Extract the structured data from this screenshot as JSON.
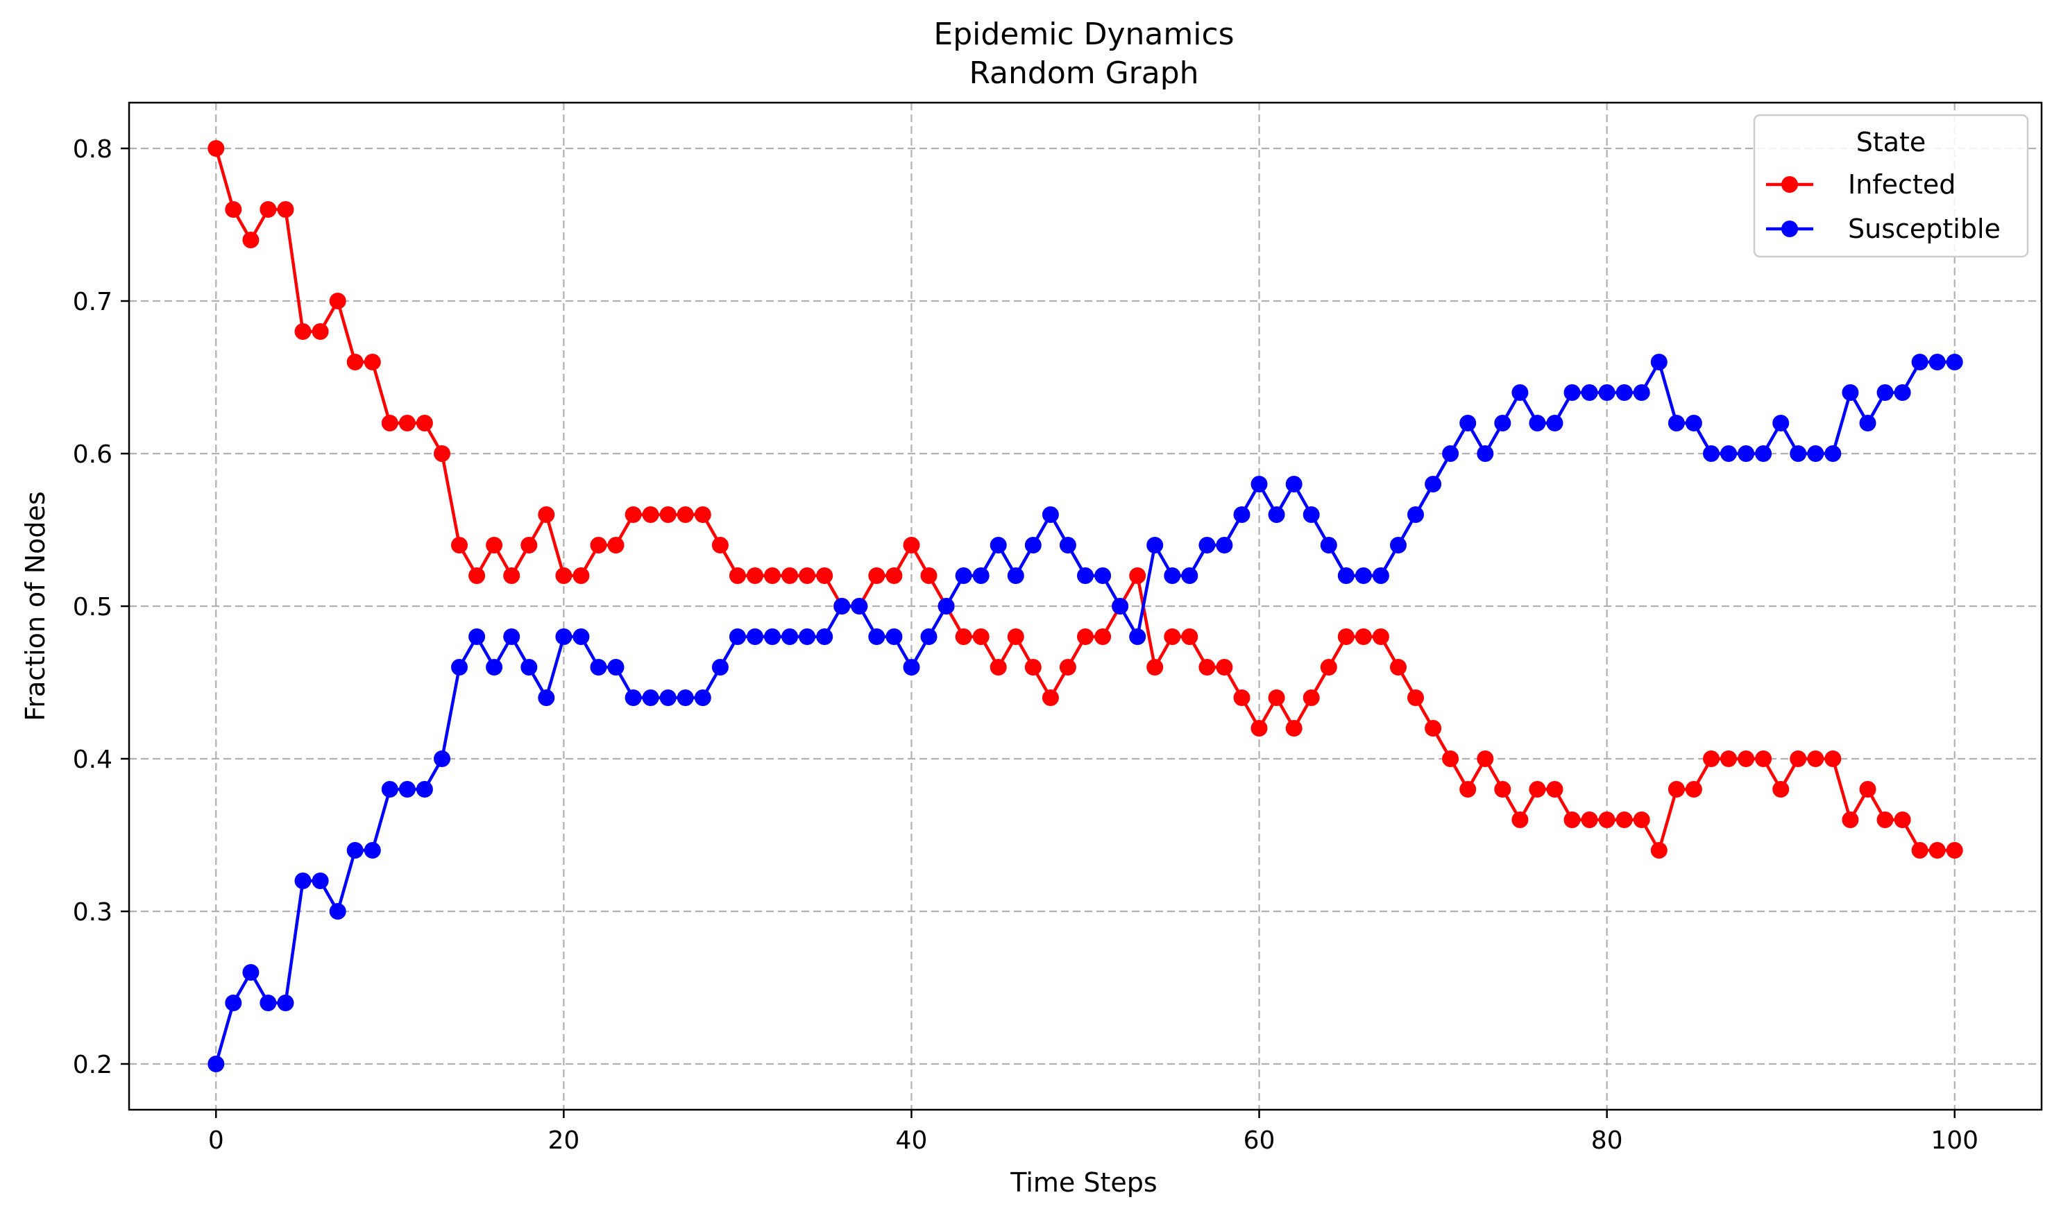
{
  "chart_data": {
    "type": "line",
    "title": "Epidemic Dynamics",
    "subtitle": "Random Graph",
    "xlabel": "Time Steps",
    "ylabel": "Fraction of Nodes",
    "xlim": [
      -5,
      105
    ],
    "ylim": [
      0.17,
      0.83
    ],
    "xticks": [
      0,
      20,
      40,
      60,
      80,
      100
    ],
    "yticks": [
      0.2,
      0.3,
      0.4,
      0.5,
      0.6,
      0.7,
      0.8
    ],
    "grid": true,
    "legend": {
      "title": "State",
      "placement": "top-right"
    },
    "x": [
      0,
      1,
      2,
      3,
      4,
      5,
      6,
      7,
      8,
      9,
      10,
      11,
      12,
      13,
      14,
      15,
      16,
      17,
      18,
      19,
      20,
      21,
      22,
      23,
      24,
      25,
      26,
      27,
      28,
      29,
      30,
      31,
      32,
      33,
      34,
      35,
      36,
      37,
      38,
      39,
      40,
      41,
      42,
      43,
      44,
      45,
      46,
      47,
      48,
      49,
      50,
      51,
      52,
      53,
      54,
      55,
      56,
      57,
      58,
      59,
      60,
      61,
      62,
      63,
      64,
      65,
      66,
      67,
      68,
      69,
      70,
      71,
      72,
      73,
      74,
      75,
      76,
      77,
      78,
      79,
      80,
      81,
      82,
      83,
      84,
      85,
      86,
      87,
      88,
      89,
      90,
      91,
      92,
      93,
      94,
      95,
      96,
      97,
      98,
      99,
      100
    ],
    "series": [
      {
        "name": "Infected",
        "color": "#ff0000",
        "values": [
          0.8,
          0.76,
          0.74,
          0.76,
          0.76,
          0.68,
          0.68,
          0.7,
          0.66,
          0.66,
          0.62,
          0.62,
          0.62,
          0.6,
          0.54,
          0.52,
          0.54,
          0.52,
          0.54,
          0.56,
          0.52,
          0.52,
          0.54,
          0.54,
          0.56,
          0.56,
          0.56,
          0.56,
          0.56,
          0.54,
          0.52,
          0.52,
          0.52,
          0.52,
          0.52,
          0.52,
          0.5,
          0.5,
          0.52,
          0.52,
          0.54,
          0.52,
          0.5,
          0.48,
          0.48,
          0.46,
          0.48,
          0.46,
          0.44,
          0.46,
          0.48,
          0.48,
          0.5,
          0.52,
          0.46,
          0.48,
          0.48,
          0.46,
          0.46,
          0.44,
          0.42,
          0.44,
          0.42,
          0.44,
          0.46,
          0.48,
          0.48,
          0.48,
          0.46,
          0.44,
          0.42,
          0.4,
          0.38,
          0.4,
          0.38,
          0.36,
          0.38,
          0.38,
          0.36,
          0.36,
          0.36,
          0.36,
          0.36,
          0.34,
          0.38,
          0.38,
          0.4,
          0.4,
          0.4,
          0.4,
          0.38,
          0.4,
          0.4,
          0.4,
          0.36,
          0.38,
          0.36,
          0.36,
          0.34,
          0.34,
          0.34
        ]
      },
      {
        "name": "Susceptible",
        "color": "#0000ff",
        "values": [
          0.2,
          0.24,
          0.26,
          0.24,
          0.24,
          0.32,
          0.32,
          0.3,
          0.34,
          0.34,
          0.38,
          0.38,
          0.38,
          0.4,
          0.46,
          0.48,
          0.46,
          0.48,
          0.46,
          0.44,
          0.48,
          0.48,
          0.46,
          0.46,
          0.44,
          0.44,
          0.44,
          0.44,
          0.44,
          0.46,
          0.48,
          0.48,
          0.48,
          0.48,
          0.48,
          0.48,
          0.5,
          0.5,
          0.48,
          0.48,
          0.46,
          0.48,
          0.5,
          0.52,
          0.52,
          0.54,
          0.52,
          0.54,
          0.56,
          0.54,
          0.52,
          0.52,
          0.5,
          0.48,
          0.54,
          0.52,
          0.52,
          0.54,
          0.54,
          0.56,
          0.58,
          0.56,
          0.58,
          0.56,
          0.54,
          0.52,
          0.52,
          0.52,
          0.54,
          0.56,
          0.58,
          0.6,
          0.62,
          0.6,
          0.62,
          0.64,
          0.62,
          0.62,
          0.64,
          0.64,
          0.64,
          0.64,
          0.64,
          0.66,
          0.62,
          0.62,
          0.6,
          0.6,
          0.6,
          0.6,
          0.62,
          0.6,
          0.6,
          0.6,
          0.64,
          0.62,
          0.64,
          0.64,
          0.66,
          0.66,
          0.66
        ]
      }
    ]
  }
}
